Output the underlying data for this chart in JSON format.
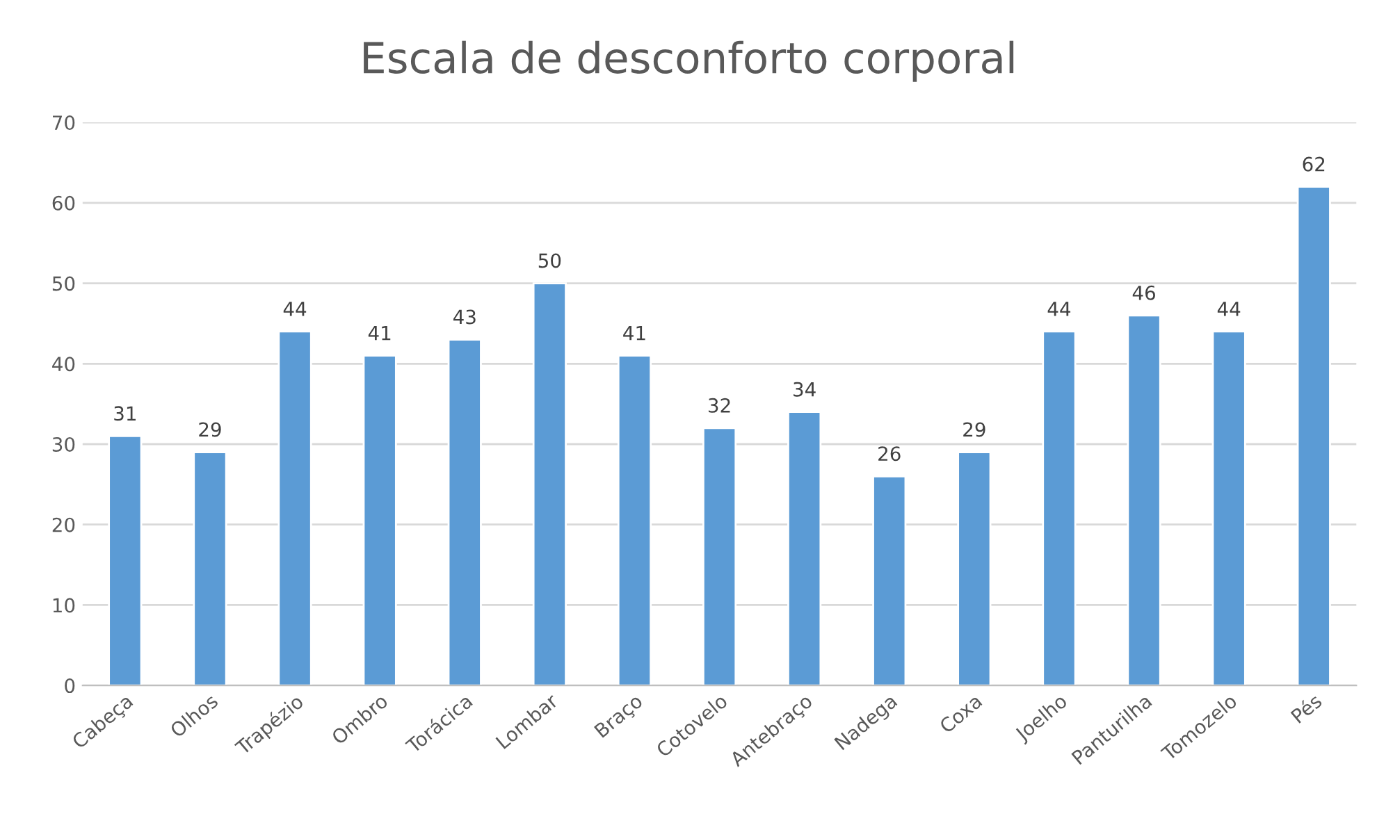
{
  "chart_data": {
    "type": "bar",
    "title": "Escala de desconforto corporal",
    "categories": [
      "Cabeça",
      "Olhos",
      "Trapézio",
      "Ombro",
      "Torácica",
      "Lombar",
      "Braço",
      "Cotovelo",
      "Antebraço",
      "Nadega",
      "Coxa",
      "Joelho",
      "Panturilha",
      "Tomozelo",
      "Pés"
    ],
    "values": [
      31,
      29,
      44,
      41,
      43,
      50,
      41,
      32,
      34,
      26,
      29,
      44,
      46,
      44,
      62
    ],
    "color": "#5b9bd5",
    "ylim": [
      0,
      70
    ],
    "yticks": [
      0,
      10,
      20,
      30,
      40,
      50,
      60,
      70
    ],
    "grid": "y",
    "data_labels": true
  }
}
